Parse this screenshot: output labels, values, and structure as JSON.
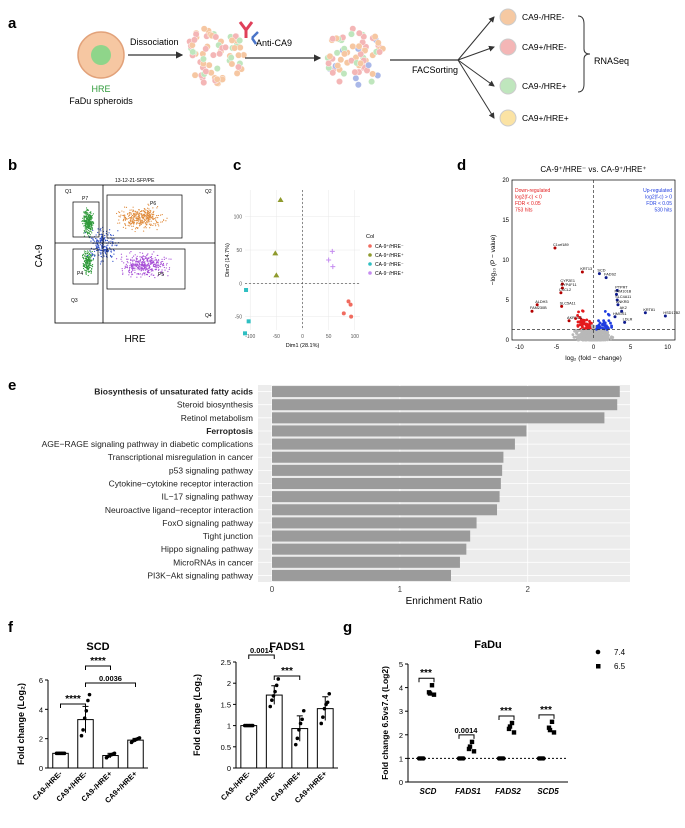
{
  "panels": {
    "a": "a",
    "b": "b",
    "c": "c",
    "d": "d",
    "e": "e",
    "f": "f",
    "g": "g"
  },
  "panel_a": {
    "hre": "HRE",
    "fadu": "FaDu spheroids",
    "dissociation": "Dissociation",
    "anti": "Anti-CA9",
    "facs": "FACSorting",
    "rnaseq": "RNASeq",
    "groups": [
      "CA9-/HRE-",
      "CA9+/HRE-",
      "CA9-/HRE+",
      "CA9+/HRE+"
    ],
    "group_colors": [
      "#f6c9a2",
      "#f4b6b6",
      "#bfe6bd",
      "#fbe3a4"
    ]
  },
  "panel_b": {
    "ylabel": "CA-9",
    "xlabel": "HRE",
    "header": "13-12-21-SFP/PE",
    "gates": [
      "Q1",
      "Q2",
      "Q3",
      "Q4",
      "P7",
      "P6",
      "P4",
      "P5"
    ]
  },
  "chart_data": [
    {
      "type": "scatter",
      "panel": "c",
      "xlabel": "Dim1 (28.1%)",
      "ylabel": "Dim2 (14.7%)",
      "xlim": [
        -110,
        110
      ],
      "ylim": [
        -70,
        140
      ],
      "xticks": [
        -100,
        -50,
        0,
        50,
        100
      ],
      "yticks": [
        -50,
        0,
        50,
        100
      ],
      "legend_title": "Col",
      "series": [
        {
          "name": "CA-9⁺/HRE⁻",
          "color": "#f06b5f",
          "marker": "circle",
          "points": [
            [
              88,
              -27
            ],
            [
              92,
              -32
            ],
            [
              93,
              -50
            ],
            [
              79,
              -45
            ]
          ]
        },
        {
          "name": "CA-9⁺/HRE⁺",
          "color": "#8f9a2d",
          "marker": "triangle",
          "points": [
            [
              -42,
              125
            ],
            [
              -52,
              45
            ],
            [
              -50,
              12
            ]
          ]
        },
        {
          "name": "CA-9⁻/HRE⁻",
          "color": "#2fbfc2",
          "marker": "square",
          "points": [
            [
              -108,
              -10
            ],
            [
              -103,
              -57
            ],
            [
              -110,
              -75
            ]
          ]
        },
        {
          "name": "CA-9⁻/HRE⁺",
          "color": "#c58cf0",
          "marker": "plus",
          "points": [
            [
              57,
              48
            ],
            [
              50,
              35
            ],
            [
              58,
              25
            ]
          ]
        }
      ]
    },
    {
      "type": "scatter",
      "panel": "d",
      "title": "CA-9⁺/HRE⁻ vs. CA-9⁺/HRE⁺",
      "xlabel": "log₂ (fold − change)",
      "ylabel": "−log₁₀ (P − value)",
      "xlim": [
        -11,
        11
      ],
      "ylim": [
        0,
        20
      ],
      "xticks": [
        -10,
        -5,
        0,
        5,
        10
      ],
      "yticks": [
        0,
        5,
        10,
        15,
        20
      ],
      "down_text": [
        "Down-regulated",
        "log2(f-c) < 0",
        "FDR < 0.05",
        "753 hits"
      ],
      "up_text": [
        "Up-regulated",
        "log2(f-c) > 0",
        "FDR < 0.05",
        "530 hits"
      ],
      "labels": [
        {
          "t": "C1orf189",
          "x": -5.2,
          "y": 11.5
        },
        {
          "t": "KRT13",
          "x": -1.5,
          "y": 8.5
        },
        {
          "t": "CYP2E1",
          "x": -4.2,
          "y": 7.0
        },
        {
          "t": "CYP4F11",
          "x": -4.2,
          "y": 6.5
        },
        {
          "t": "CXCL2",
          "x": -4.4,
          "y": 5.9
        },
        {
          "t": "SLC5A11",
          "x": -4.3,
          "y": 4.2
        },
        {
          "t": "ALDH3",
          "x": -7.6,
          "y": 4.4
        },
        {
          "t": "FAM230B",
          "x": -8.3,
          "y": 3.6
        },
        {
          "t": "AKR1C3",
          "x": -3.3,
          "y": 2.4
        },
        {
          "t": "SCD",
          "x": 0.8,
          "y": 8.3
        },
        {
          "t": "FADS2",
          "x": 1.7,
          "y": 7.8
        },
        {
          "t": "PTPRT",
          "x": 3.2,
          "y": 6.2
        },
        {
          "t": "FAM101B",
          "x": 3.1,
          "y": 5.7
        },
        {
          "t": "SLC4A11",
          "x": 3.2,
          "y": 5.0
        },
        {
          "t": "ANKRD",
          "x": 3.3,
          "y": 4.4
        },
        {
          "t": "AK2",
          "x": 3.8,
          "y": 3.6
        },
        {
          "t": "HMGS1",
          "x": 2.9,
          "y": 2.9
        },
        {
          "t": "LDLR",
          "x": 4.2,
          "y": 2.2
        },
        {
          "t": "KRT81",
          "x": 7.0,
          "y": 3.4
        },
        {
          "t": "HSD17B2",
          "x": 9.7,
          "y": 3.0
        }
      ]
    },
    {
      "type": "bar",
      "panel": "e",
      "xlabel": "Enrichment Ratio",
      "xlim": [
        0,
        2.8
      ],
      "xticks": [
        0,
        1,
        2
      ],
      "categories": [
        "Biosynthesis of unsaturated fatty acids",
        "Steroid biosynthesis",
        "Retinol metabolism",
        "Ferroptosis",
        "AGE−RAGE signaling pathway in diabetic complications",
        "Transcriptional misregulation in cancer",
        "p53 signaling pathway",
        "Cytokine−cytokine receptor interaction",
        "IL−17 signaling pathway",
        "Neuroactive ligand−receptor interaction",
        "FoxO signaling pathway",
        "Tight junction",
        "Hippo signaling pathway",
        "MicroRNAs in cancer",
        "PI3K−Akt signaling pathway"
      ],
      "bold": [
        true,
        false,
        false,
        true,
        false,
        false,
        false,
        false,
        false,
        false,
        false,
        false,
        false,
        false,
        false
      ],
      "values": [
        2.72,
        2.7,
        2.6,
        1.99,
        1.9,
        1.81,
        1.8,
        1.79,
        1.78,
        1.76,
        1.6,
        1.55,
        1.52,
        1.47,
        1.4
      ]
    },
    {
      "type": "bar",
      "panel": "f1",
      "title": "SCD",
      "ylabel": "Fold change (Log₂)",
      "ylim": [
        0,
        6
      ],
      "yticks": [
        0,
        2,
        4,
        6
      ],
      "categories": [
        "CA9-/HRE-",
        "CA9+/HRE-",
        "CA9-/HRE+",
        "CA9+/HRE+"
      ],
      "values": [
        1.0,
        3.3,
        0.85,
        1.9
      ],
      "errors": [
        0.05,
        0.9,
        0.15,
        0.12
      ],
      "points": [
        [
          1.0,
          1.0,
          1.0,
          1.0,
          1.0,
          1.0
        ],
        [
          2.2,
          2.6,
          3.4,
          3.9,
          4.6,
          5.0
        ],
        [
          0.7,
          0.8,
          0.85,
          0.9,
          0.95,
          1.0
        ],
        [
          1.75,
          1.85,
          1.9,
          1.95,
          2.0,
          2.05
        ]
      ],
      "annotations": [
        {
          "text": "****",
          "pair": [
            0,
            1
          ]
        },
        {
          "text": "****",
          "pair": [
            1,
            2
          ]
        },
        {
          "text": "0.0036",
          "pair": [
            1,
            3
          ]
        }
      ]
    },
    {
      "type": "bar",
      "panel": "f2",
      "title": "FADS1",
      "ylabel": "Fold change (Log₂)",
      "ylim": [
        0,
        2.5
      ],
      "yticks": [
        0,
        0.5,
        1,
        1.5,
        2,
        2.5
      ],
      "categories": [
        "CA9-/HRE-",
        "CA9+/HRE-",
        "CA9-/HRE+",
        "CA9+/HRE+"
      ],
      "values": [
        1.0,
        1.72,
        0.93,
        1.4
      ],
      "errors": [
        0.0,
        0.22,
        0.3,
        0.28
      ],
      "points": [
        [
          1.0,
          1.0,
          1.0,
          1.0,
          1.0,
          1.0
        ],
        [
          1.45,
          1.6,
          1.7,
          1.8,
          1.95,
          2.1
        ],
        [
          0.55,
          0.7,
          0.9,
          1.05,
          1.15,
          1.35
        ],
        [
          1.05,
          1.2,
          1.4,
          1.5,
          1.55,
          1.75
        ]
      ],
      "annotations": [
        {
          "text": "0.0014",
          "pair": [
            0,
            1
          ]
        },
        {
          "text": "***",
          "pair": [
            1,
            2
          ]
        }
      ]
    },
    {
      "type": "scatter",
      "panel": "g",
      "title": "FaDu",
      "ylabel": "Fold change 6.5vs7.4 (Log2)",
      "ylim": [
        0,
        5
      ],
      "yticks": [
        0,
        1,
        2,
        3,
        4,
        5
      ],
      "categories": [
        "SCD",
        "FADS1",
        "FADS2",
        "SCD5"
      ],
      "legend": [
        "7.4",
        "6.5"
      ],
      "series": [
        {
          "name": "7.4",
          "marker": "circle",
          "values": [
            [
              1,
              1,
              1,
              1
            ],
            [
              1,
              1,
              1,
              1
            ],
            [
              1,
              1,
              1,
              1
            ],
            [
              1,
              1,
              1,
              1
            ]
          ]
        },
        {
          "name": "6.5",
          "marker": "square",
          "values": [
            [
              4.1,
              3.8,
              3.7,
              3.75
            ],
            [
              1.7,
              1.4,
              1.3,
              1.5
            ],
            [
              2.5,
              2.25,
              2.1,
              2.35
            ],
            [
              2.55,
              2.3,
              2.1,
              2.2
            ]
          ]
        }
      ],
      "annotations": [
        "***",
        "0.0014",
        "***",
        "***"
      ]
    }
  ]
}
